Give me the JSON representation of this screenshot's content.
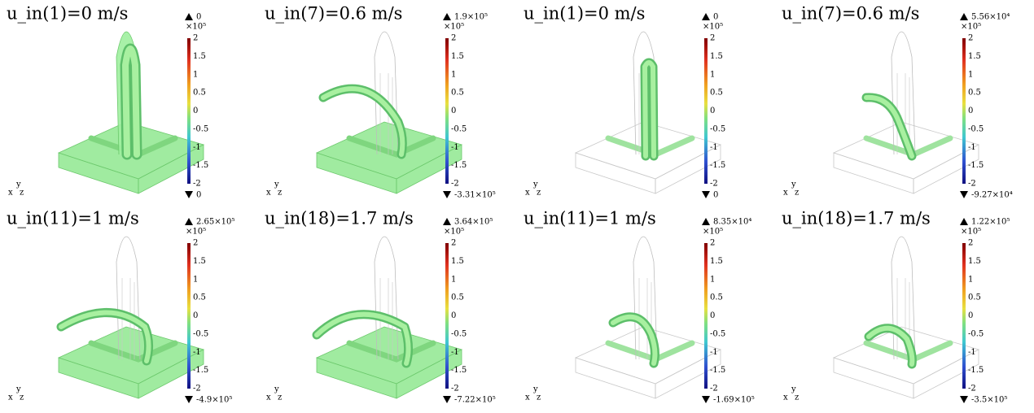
{
  "colorbar_exponent": "×10⁵",
  "colorbar_ticks": [
    "2",
    "1.5",
    "1",
    "0.5",
    "0",
    "-0.5",
    "-1",
    "-1.5",
    "-2"
  ],
  "axis_labels": [
    "x",
    "y",
    "z"
  ],
  "panels": [
    {
      "title": "u_in(1)=0 m/s",
      "max": "0",
      "min": "0"
    },
    {
      "title": "u_in(7)=0.6 m/s",
      "max": "1.9×10⁵",
      "min": "-3.31×10⁵"
    },
    {
      "title": "u_in(1)=0 m/s",
      "max": "0",
      "min": "0"
    },
    {
      "title": "u_in(7)=0.6 m/s",
      "max": "5.56×10⁴",
      "min": "-9.27×10⁴"
    },
    {
      "title": "u_in(11)=1 m/s",
      "max": "2.65×10⁵",
      "min": "-4.9×10⁵"
    },
    {
      "title": "u_in(18)=1.7 m/s",
      "max": "3.64×10⁵",
      "min": "-7.22×10⁵"
    },
    {
      "title": "u_in(11)=1 m/s",
      "max": "8.35×10⁴",
      "min": "-1.69×10⁵"
    },
    {
      "title": "u_in(18)=1.7 m/s",
      "max": "1.22×10⁵",
      "min": "-3.5×10⁵"
    }
  ]
}
